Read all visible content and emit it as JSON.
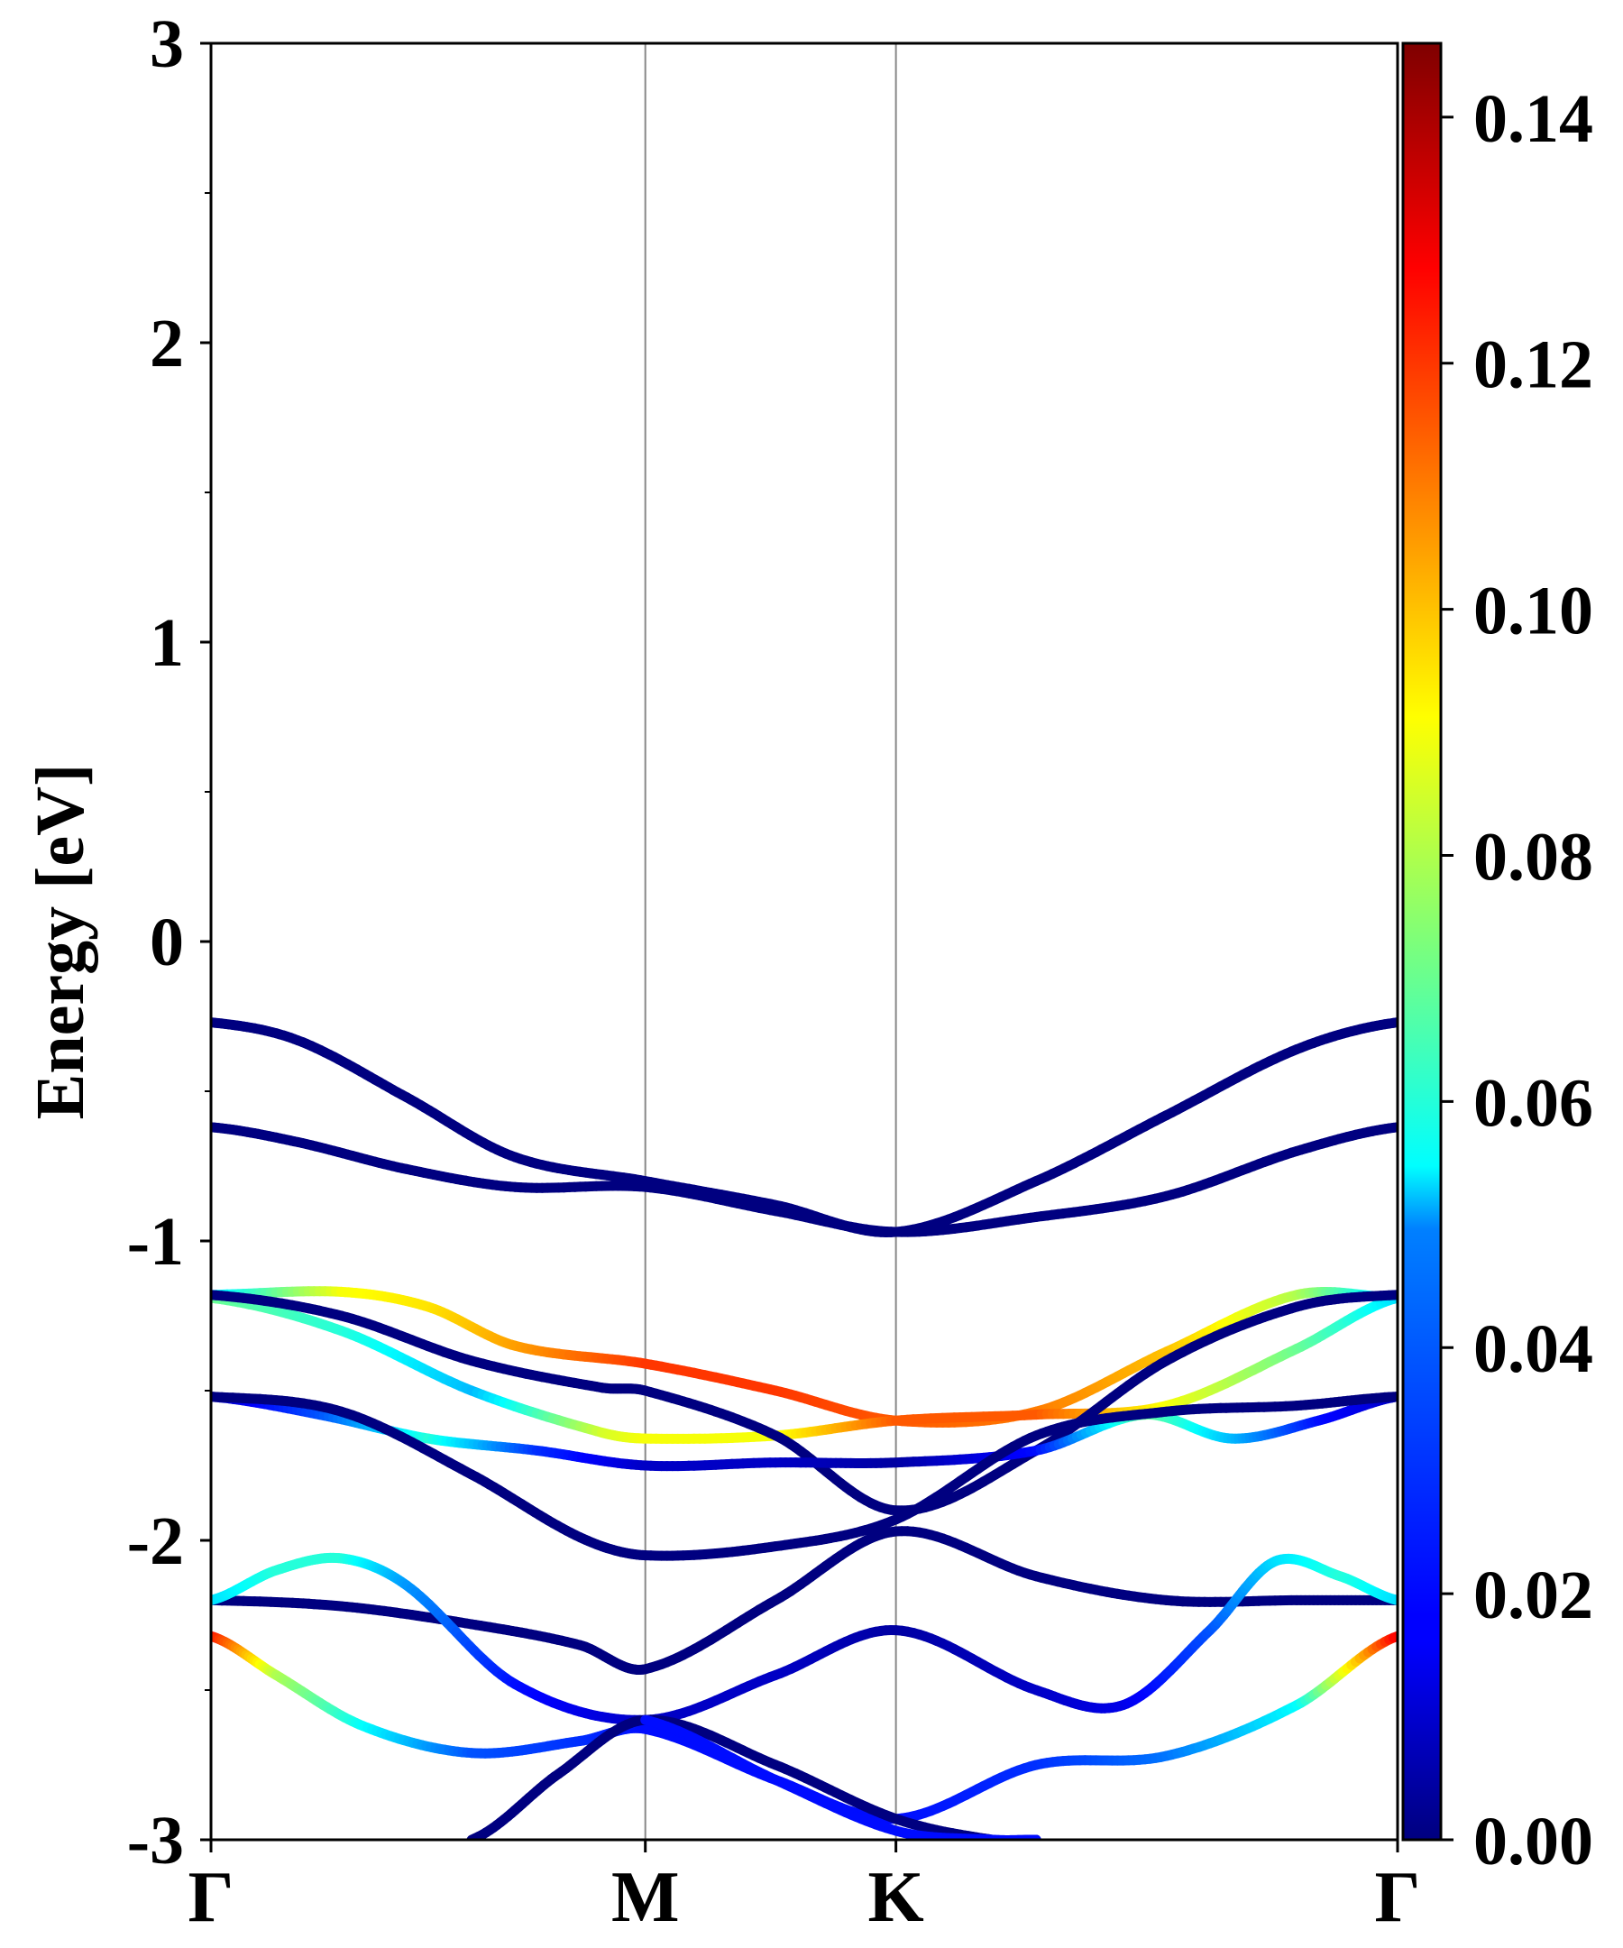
{
  "chart_data": {
    "type": "line",
    "title": "",
    "xlabel": "",
    "ylabel": "Energy [eV]",
    "ylim": [
      -3,
      3
    ],
    "xlim": [
      0,
      2.732
    ],
    "yticks": [
      -3,
      -2,
      -1,
      0,
      1,
      2,
      3
    ],
    "ytick_labels": [
      "-3",
      "-2",
      "-1",
      "0",
      "1",
      "2",
      "3"
    ],
    "kpoints": [
      {
        "label": "Γ",
        "x": 0
      },
      {
        "label": "M",
        "x": 1.0
      },
      {
        "label": "K",
        "x": 1.577
      },
      {
        "label": "Γ",
        "x": 2.732
      }
    ],
    "colorbar": {
      "min": 0.0,
      "max": 0.146,
      "ticks": [
        0.0,
        0.02,
        0.04,
        0.06,
        0.08,
        0.1,
        0.12,
        0.14
      ],
      "tick_labels": [
        "0.00",
        "0.02",
        "0.04",
        "0.06",
        "0.08",
        "0.10",
        "0.12",
        "0.14"
      ],
      "colormap": "jet"
    },
    "series": [
      {
        "name": "band 1",
        "x": [
          0,
          0.2,
          0.45,
          0.7,
          1.0,
          1.3,
          1.577,
          1.9,
          2.2,
          2.5,
          2.732
        ],
        "y": [
          -0.27,
          -0.33,
          -0.52,
          -0.72,
          -0.8,
          -0.88,
          -0.97,
          -0.8,
          -0.58,
          -0.36,
          -0.27
        ],
        "w": [
          0,
          0,
          0,
          0,
          0,
          0,
          0,
          0,
          0,
          0,
          0
        ]
      },
      {
        "name": "band 2",
        "x": [
          0,
          0.2,
          0.45,
          0.7,
          1.0,
          1.3,
          1.577,
          1.9,
          2.2,
          2.5,
          2.732
        ],
        "y": [
          -0.62,
          -0.67,
          -0.76,
          -0.82,
          -0.82,
          -0.9,
          -0.97,
          -0.92,
          -0.85,
          -0.7,
          -0.62
        ],
        "w": [
          0,
          0,
          0,
          0,
          0,
          0,
          0,
          0,
          0,
          0,
          0
        ]
      },
      {
        "name": "band 3",
        "x": [
          0,
          0.3,
          0.5,
          0.7,
          1.0,
          1.3,
          1.577,
          1.9,
          2.2,
          2.5,
          2.732
        ],
        "y": [
          -1.18,
          -1.17,
          -1.22,
          -1.35,
          -1.41,
          -1.5,
          -1.6,
          -1.57,
          -1.37,
          -1.18,
          -1.19
        ],
        "w": [
          0.05,
          0.09,
          0.095,
          0.105,
          0.12,
          0.12,
          0.115,
          0.11,
          0.1,
          0.08,
          0.045
        ]
      },
      {
        "name": "band 4",
        "x": [
          0,
          0.3,
          0.6,
          0.9,
          1.0,
          1.3,
          1.577,
          1.9,
          2.2,
          2.5,
          2.732
        ],
        "y": [
          -1.19,
          -1.3,
          -1.5,
          -1.64,
          -1.66,
          -1.65,
          -1.6,
          -1.58,
          -1.55,
          -1.36,
          -1.19
        ],
        "w": [
          0.07,
          0.06,
          0.045,
          0.085,
          0.09,
          0.09,
          0.115,
          0.115,
          0.09,
          0.07,
          0.05
        ]
      },
      {
        "name": "band 5",
        "x": [
          0,
          0.3,
          0.6,
          0.9,
          1.0,
          1.3,
          1.577,
          1.9,
          2.2,
          2.5,
          2.732
        ],
        "y": [
          -1.18,
          -1.25,
          -1.4,
          -1.49,
          -1.5,
          -1.65,
          -1.9,
          -1.7,
          -1.4,
          -1.22,
          -1.18
        ],
        "w": [
          0,
          0,
          0,
          0,
          0,
          0,
          0,
          0,
          0,
          0,
          0
        ]
      },
      {
        "name": "band 6",
        "x": [
          0,
          0.25,
          0.5,
          0.75,
          1.0,
          1.3,
          1.577,
          1.9,
          2.15,
          2.35,
          2.55,
          2.732
        ],
        "y": [
          -1.52,
          -1.58,
          -1.66,
          -1.7,
          -1.75,
          -1.74,
          -1.74,
          -1.7,
          -1.58,
          -1.66,
          -1.6,
          -1.52
        ],
        "w": [
          0.01,
          0.03,
          0.06,
          0.025,
          0.01,
          0.01,
          0.005,
          0.02,
          0.07,
          0.045,
          0.02,
          0.01
        ]
      },
      {
        "name": "band 7",
        "x": [
          0,
          0.3,
          0.6,
          0.85,
          1.0,
          1.3,
          1.577,
          1.9,
          2.2,
          2.5,
          2.732
        ],
        "y": [
          -1.52,
          -1.57,
          -1.78,
          -1.99,
          -2.05,
          -2.02,
          -1.93,
          -1.65,
          -1.57,
          -1.55,
          -1.52
        ],
        "w": [
          0,
          0,
          0,
          0,
          0,
          0,
          0,
          0,
          0,
          0,
          0
        ]
      },
      {
        "name": "band 8",
        "x": [
          0,
          0.3,
          0.6,
          0.85,
          1.0,
          1.3,
          1.577,
          1.9,
          2.2,
          2.5,
          2.732
        ],
        "y": [
          -2.2,
          -2.22,
          -2.28,
          -2.35,
          -2.43,
          -2.2,
          -1.97,
          -2.12,
          -2.2,
          -2.2,
          -2.2
        ],
        "w": [
          0,
          0,
          0,
          0,
          0,
          0,
          0,
          0,
          0,
          0,
          0
        ]
      },
      {
        "name": "band 9",
        "x": [
          0,
          0.15,
          0.3,
          0.45,
          0.7,
          1.0,
          1.3,
          1.577,
          1.9,
          2.1,
          2.3,
          2.45,
          2.6,
          2.732
        ],
        "y": [
          -2.2,
          -2.1,
          -2.06,
          -2.15,
          -2.48,
          -2.6,
          -2.45,
          -2.3,
          -2.5,
          -2.55,
          -2.3,
          -2.07,
          -2.12,
          -2.2
        ],
        "w": [
          0.05,
          0.06,
          0.06,
          0.04,
          0.02,
          0.01,
          0.01,
          0.005,
          0.01,
          0.015,
          0.03,
          0.05,
          0.06,
          0.05
        ]
      },
      {
        "name": "band 10",
        "x": [
          0,
          0.15,
          0.35,
          0.6,
          0.85,
          1.0,
          1.3,
          1.577,
          1.9,
          2.2,
          2.5,
          2.732
        ],
        "y": [
          -2.32,
          -2.45,
          -2.62,
          -2.71,
          -2.67,
          -2.63,
          -2.8,
          -2.93,
          -2.75,
          -2.72,
          -2.55,
          -2.32
        ],
        "w": [
          0.125,
          0.08,
          0.055,
          0.03,
          0.025,
          0.02,
          0.02,
          0.02,
          0.025,
          0.035,
          0.055,
          0.13
        ]
      },
      {
        "name": "band 11",
        "x": [
          0.6,
          0.8,
          1.0,
          1.3,
          1.577,
          1.8,
          1.9
        ],
        "y": [
          -3.0,
          -2.78,
          -2.6,
          -2.75,
          -2.93,
          -3.0,
          -3.0
        ],
        "w": [
          0,
          0,
          0,
          0,
          0,
          0,
          0
        ]
      },
      {
        "name": "band 12",
        "x": [
          1.0,
          1.3,
          1.577,
          1.8,
          1.9
        ],
        "y": [
          -2.6,
          -2.8,
          -2.97,
          -3.0,
          -3.0
        ],
        "w": [
          0.02,
          0.02,
          0.02,
          0.02,
          0.02
        ]
      }
    ]
  }
}
